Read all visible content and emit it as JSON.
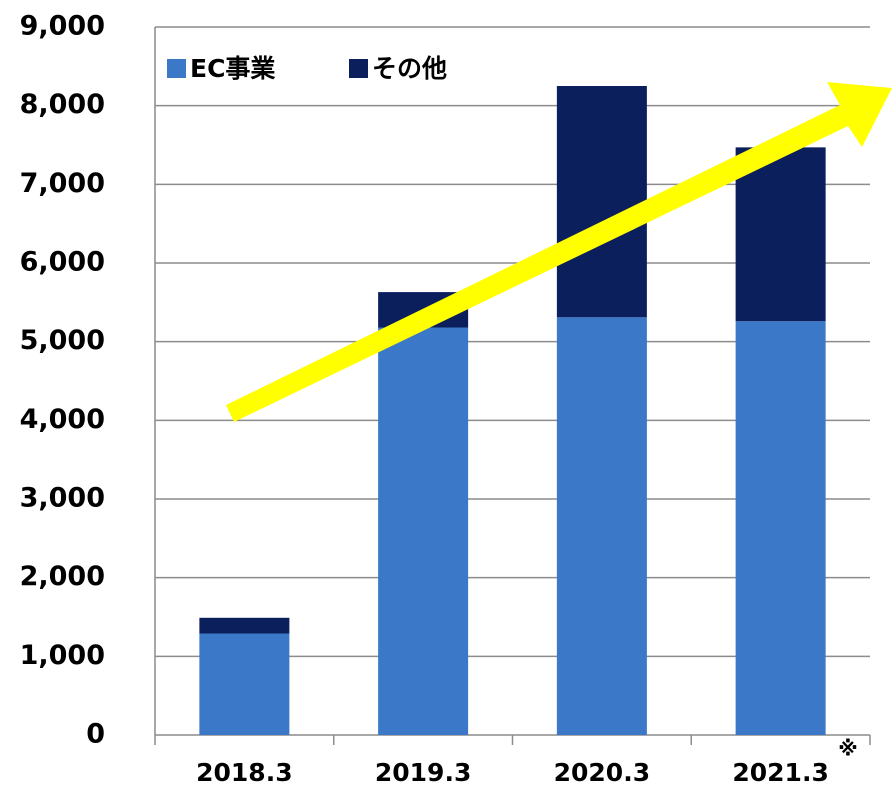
{
  "chart_data": {
    "type": "stacked_bar",
    "categories": [
      "2018.3",
      "2019.3",
      "2020.3",
      "2021.3"
    ],
    "series": [
      {
        "name": "EC事業",
        "color": "#3b78c8",
        "values": [
          1290,
          5180,
          5310,
          5260
        ]
      },
      {
        "name": "その他",
        "color": "#0a1f5c",
        "values": [
          200,
          450,
          2940,
          2210
        ]
      }
    ],
    "ylim": [
      0,
      9000
    ],
    "yticks": [
      0,
      {
        "value": 1000,
        "label": "1,000"
      },
      {
        "value": 2000,
        "label": "2,000"
      },
      {
        "value": 3000,
        "label": "3,000"
      },
      {
        "value": 4000,
        "label": "4,000"
      },
      {
        "value": 5000,
        "label": "5,000"
      },
      {
        "value": 6000,
        "label": "6,000"
      },
      {
        "value": 7000,
        "label": "7,000"
      },
      {
        "value": 8000,
        "label": "8,000"
      },
      {
        "value": 9000,
        "label": "9,000"
      }
    ],
    "grid": true,
    "legend": "top-left",
    "annotation": "※"
  }
}
